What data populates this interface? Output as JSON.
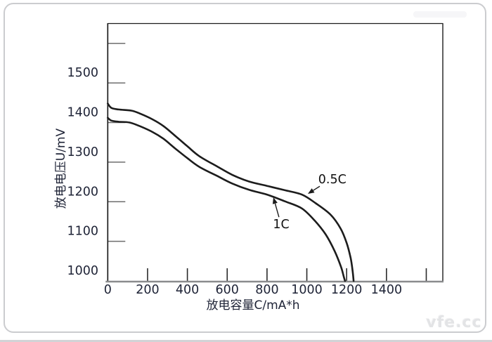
{
  "watermark": "vfe.cc",
  "chart_data": {
    "type": "line",
    "title": "",
    "xlabel": "放电容量C/mA*h",
    "ylabel": "放电电压U/mV",
    "xlim": [
      0,
      1683
    ],
    "ylim": [
      1000,
      1651
    ],
    "grid": false,
    "legend_position": "none",
    "x_tick_marks": [
      200,
      400,
      600,
      800,
      1000,
      1200,
      1400,
      1600
    ],
    "x_tick_labels": [
      [
        0,
        "0"
      ],
      [
        200,
        "200"
      ],
      [
        400,
        "400"
      ],
      [
        600,
        "600"
      ],
      [
        800,
        "800"
      ],
      [
        1000,
        "1000"
      ],
      [
        1200,
        "1200"
      ],
      [
        1400,
        "1400"
      ]
    ],
    "y_tick_marks": [
      1100,
      1200,
      1300,
      1400,
      1500,
      1600
    ],
    "y_tick_labels": [
      [
        1000,
        "1000"
      ],
      [
        1100,
        "1100"
      ],
      [
        1200,
        "1200"
      ],
      [
        1300,
        "1300"
      ],
      [
        1400,
        "1400"
      ],
      [
        1500,
        "1500"
      ]
    ],
    "series": [
      {
        "name": "0.5C",
        "points": [
          [
            0,
            1448
          ],
          [
            18,
            1437
          ],
          [
            55,
            1433
          ],
          [
            120,
            1430
          ],
          [
            165,
            1422
          ],
          [
            225,
            1408
          ],
          [
            280,
            1391
          ],
          [
            340,
            1366
          ],
          [
            400,
            1340
          ],
          [
            460,
            1315
          ],
          [
            550,
            1289
          ],
          [
            625,
            1268
          ],
          [
            710,
            1251
          ],
          [
            800,
            1240
          ],
          [
            890,
            1229
          ],
          [
            975,
            1218
          ],
          [
            1045,
            1196
          ],
          [
            1120,
            1167
          ],
          [
            1170,
            1132
          ],
          [
            1200,
            1096
          ],
          [
            1220,
            1058
          ],
          [
            1230,
            1025
          ],
          [
            1235,
            1000
          ]
        ]
      },
      {
        "name": "1C",
        "points": [
          [
            0,
            1412
          ],
          [
            18,
            1405
          ],
          [
            55,
            1402
          ],
          [
            110,
            1400
          ],
          [
            165,
            1390
          ],
          [
            225,
            1376
          ],
          [
            280,
            1359
          ],
          [
            340,
            1334
          ],
          [
            400,
            1310
          ],
          [
            460,
            1288
          ],
          [
            550,
            1265
          ],
          [
            625,
            1246
          ],
          [
            710,
            1230
          ],
          [
            800,
            1218
          ],
          [
            890,
            1201
          ],
          [
            975,
            1183
          ],
          [
            1040,
            1152
          ],
          [
            1095,
            1117
          ],
          [
            1140,
            1075
          ],
          [
            1172,
            1035
          ],
          [
            1186,
            1010
          ],
          [
            1192,
            1000
          ]
        ]
      }
    ],
    "annotations": [
      {
        "text": "0.5C",
        "text_at": [
          1128,
          1255
        ],
        "arrow_from": [
          1065,
          1239
        ],
        "arrow_to": [
          1005,
          1220
        ]
      },
      {
        "text": "1C",
        "text_at": [
          871,
          1142
        ],
        "arrow_from": [
          860,
          1161
        ],
        "arrow_to": [
          832,
          1211
        ]
      }
    ],
    "colors": {
      "curve": "#1c1c1c",
      "tick_label": "#1e2336",
      "axis": "#1c1c1c",
      "baseline": "#8a8b8d",
      "y_tick": "#6e6e6e",
      "watermark": "#e3e4e6"
    }
  }
}
